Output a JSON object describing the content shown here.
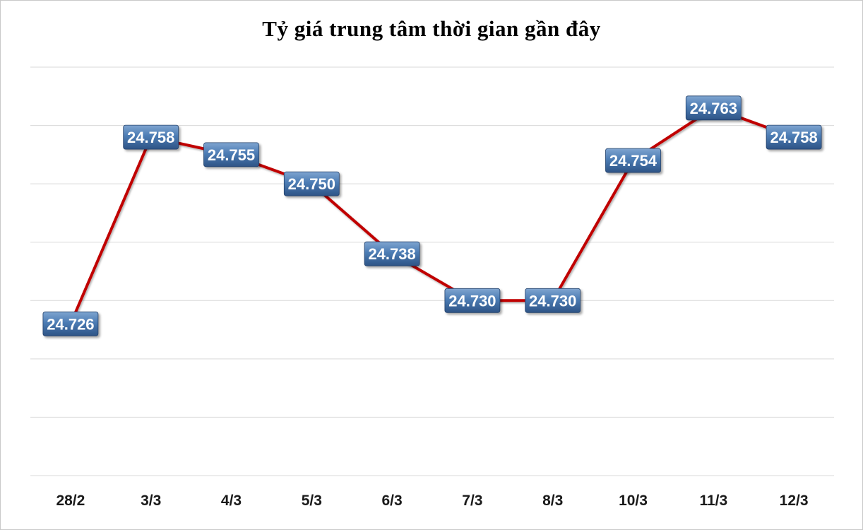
{
  "chart_data": {
    "type": "line",
    "title": "Tỷ giá trung tâm thời gian gần đây",
    "categories": [
      "28/2",
      "3/3",
      "4/3",
      "5/3",
      "6/3",
      "7/3",
      "8/3",
      "10/3",
      "11/3",
      "12/3"
    ],
    "values": [
      24726,
      24758,
      24755,
      24750,
      24738,
      24730,
      24730,
      24754,
      24763,
      24758
    ],
    "point_labels": [
      "24.726",
      "24.758",
      "24.755",
      "24.750",
      "24.738",
      "24.730",
      "24.730",
      "24.754",
      "24.763",
      "24.758"
    ],
    "xlabel": "",
    "ylabel": "",
    "ylim": [
      24700,
      24770
    ],
    "gridline_step": 10,
    "grid": "horizontal-only",
    "legend_position": "none",
    "colors": {
      "line": "#C00000",
      "label_box_top": "#7FA5D0",
      "label_box_mid": "#4C7CB4",
      "label_box_bottom": "#2E5486",
      "label_box_border": "#23416B",
      "label_text": "#FFFFFF",
      "gridline": "#D9D9D9",
      "axis_text": "#1A1A1A",
      "title_text": "#000000",
      "background": "#FFFFFF"
    }
  }
}
